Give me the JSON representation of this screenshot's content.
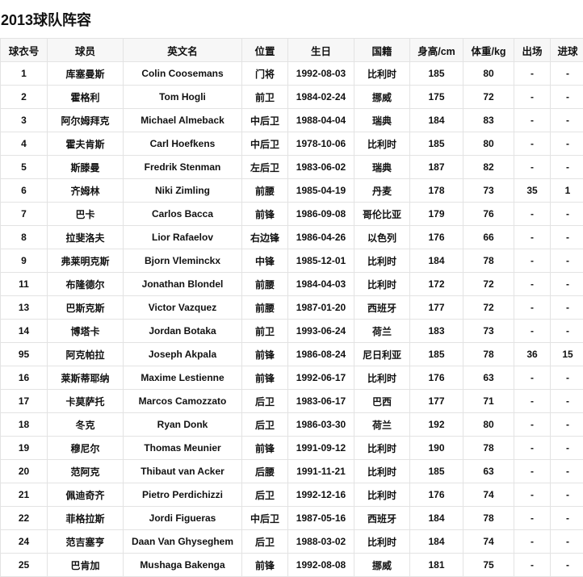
{
  "title": "2013球队阵容",
  "columns": [
    "球衣号",
    "球员",
    "英文名",
    "位置",
    "生日",
    "国籍",
    "身高/cm",
    "体重/kg",
    "出场",
    "进球"
  ],
  "rows": [
    [
      "1",
      "库塞曼斯",
      "Colin Coosemans",
      "门将",
      "1992-08-03",
      "比利时",
      "185",
      "80",
      "-",
      "-"
    ],
    [
      "2",
      "霍格利",
      "Tom Hogli",
      "前卫",
      "1984-02-24",
      "挪威",
      "175",
      "72",
      "-",
      "-"
    ],
    [
      "3",
      "阿尔姆拜克",
      "Michael Almeback",
      "中后卫",
      "1988-04-04",
      "瑞典",
      "184",
      "83",
      "-",
      "-"
    ],
    [
      "4",
      "霍夫肯斯",
      "Carl Hoefkens",
      "中后卫",
      "1978-10-06",
      "比利时",
      "185",
      "80",
      "-",
      "-"
    ],
    [
      "5",
      "斯滕曼",
      "Fredrik Stenman",
      "左后卫",
      "1983-06-02",
      "瑞典",
      "187",
      "82",
      "-",
      "-"
    ],
    [
      "6",
      "齐姆林",
      "Niki Zimling",
      "前腰",
      "1985-04-19",
      "丹麦",
      "178",
      "73",
      "35",
      "1"
    ],
    [
      "7",
      "巴卡",
      "Carlos Bacca",
      "前锋",
      "1986-09-08",
      "哥伦比亚",
      "179",
      "76",
      "-",
      "-"
    ],
    [
      "8",
      "拉斐洛夫",
      "Lior Rafaelov",
      "右边锋",
      "1986-04-26",
      "以色列",
      "176",
      "66",
      "-",
      "-"
    ],
    [
      "9",
      "弗莱明克斯",
      "Bjorn Vleminckx",
      "中锋",
      "1985-12-01",
      "比利时",
      "184",
      "78",
      "-",
      "-"
    ],
    [
      "11",
      "布隆德尔",
      "Jonathan Blondel",
      "前腰",
      "1984-04-03",
      "比利时",
      "172",
      "72",
      "-",
      "-"
    ],
    [
      "13",
      "巴斯克斯",
      "Victor Vazquez",
      "前腰",
      "1987-01-20",
      "西班牙",
      "177",
      "72",
      "-",
      "-"
    ],
    [
      "14",
      "博塔卡",
      "Jordan Botaka",
      "前卫",
      "1993-06-24",
      "荷兰",
      "183",
      "73",
      "-",
      "-"
    ],
    [
      "95",
      "阿克帕拉",
      "Joseph Akpala",
      "前锋",
      "1986-08-24",
      "尼日利亚",
      "185",
      "78",
      "36",
      "15"
    ],
    [
      "16",
      "莱斯蒂耶纳",
      "Maxime Lestienne",
      "前锋",
      "1992-06-17",
      "比利时",
      "176",
      "63",
      "-",
      "-"
    ],
    [
      "17",
      "卡莫萨托",
      "Marcos Camozzato",
      "后卫",
      "1983-06-17",
      "巴西",
      "177",
      "71",
      "-",
      "-"
    ],
    [
      "18",
      "冬克",
      "Ryan Donk",
      "后卫",
      "1986-03-30",
      "荷兰",
      "192",
      "80",
      "-",
      "-"
    ],
    [
      "19",
      "穆尼尔",
      "Thomas Meunier",
      "前锋",
      "1991-09-12",
      "比利时",
      "190",
      "78",
      "-",
      "-"
    ],
    [
      "20",
      "范阿克",
      "Thibaut van Acker",
      "后腰",
      "1991-11-21",
      "比利时",
      "185",
      "63",
      "-",
      "-"
    ],
    [
      "21",
      "佩迪奇齐",
      "Pietro Perdichizzi",
      "后卫",
      "1992-12-16",
      "比利时",
      "176",
      "74",
      "-",
      "-"
    ],
    [
      "22",
      "菲格拉斯",
      "Jordi Figueras",
      "中后卫",
      "1987-05-16",
      "西班牙",
      "184",
      "78",
      "-",
      "-"
    ],
    [
      "24",
      "范吉塞亨",
      "Daan Van Ghyseghem",
      "后卫",
      "1988-03-02",
      "比利时",
      "184",
      "74",
      "-",
      "-"
    ],
    [
      "25",
      "巴肯加",
      "Mushaga Bakenga",
      "前锋",
      "1992-08-08",
      "挪威",
      "181",
      "75",
      "-",
      "-"
    ]
  ]
}
